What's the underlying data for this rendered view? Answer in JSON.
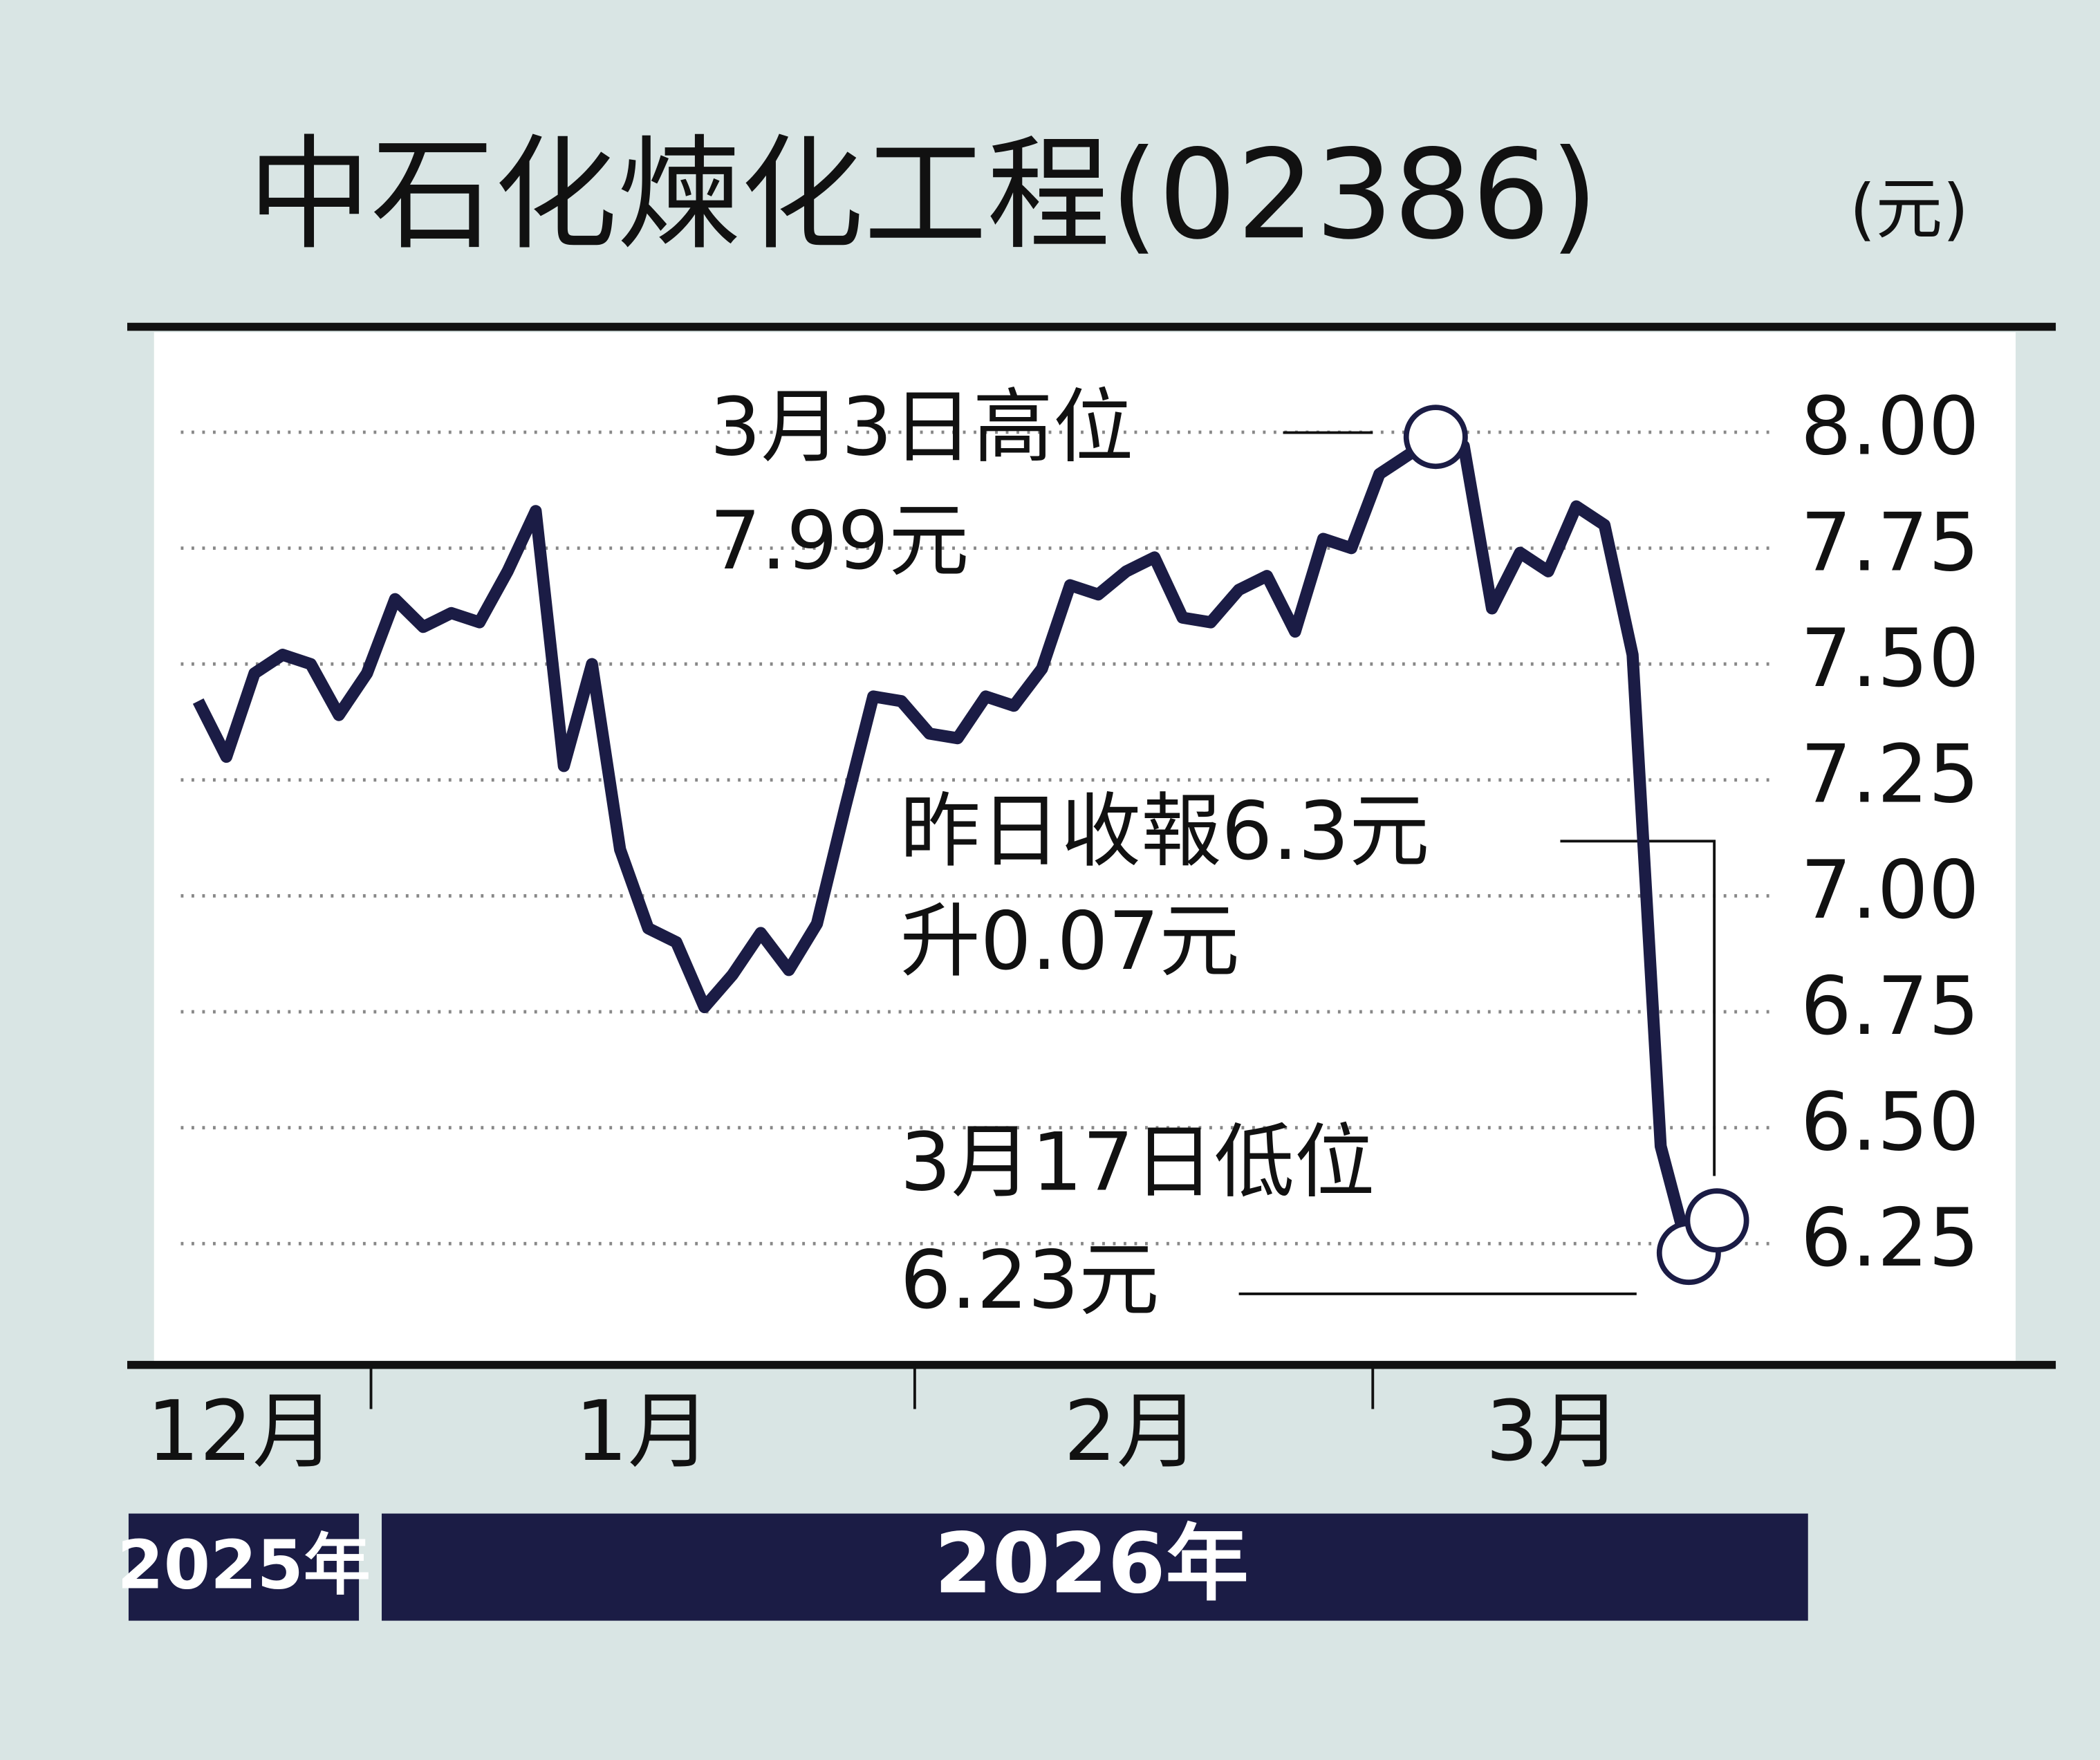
{
  "chart_data": {
    "type": "line",
    "title": "中石化煉化工程(02386)",
    "unit": "(元)",
    "values": [
      7.42,
      7.3,
      7.48,
      7.52,
      7.5,
      7.39,
      7.48,
      7.64,
      7.58,
      7.61,
      7.59,
      7.7,
      7.83,
      7.28,
      7.5,
      7.1,
      6.93,
      6.9,
      6.76,
      6.83,
      6.92,
      6.84,
      6.94,
      7.19,
      7.43,
      7.42,
      7.35,
      7.34,
      7.43,
      7.41,
      7.49,
      7.67,
      7.65,
      7.7,
      7.73,
      7.6,
      7.59,
      7.66,
      7.69,
      7.57,
      7.77,
      7.75,
      7.91,
      7.95,
      7.99,
      7.97,
      7.62,
      7.74,
      7.7,
      7.84,
      7.8,
      7.52,
      6.46,
      6.23,
      6.3
    ],
    "color": "#1b1c45",
    "ylim": [
      6.0,
      8.21
    ],
    "yticks": [
      {
        "value": 6.25,
        "label": "6.25"
      },
      {
        "value": 6.5,
        "label": "6.50"
      },
      {
        "value": 6.75,
        "label": "6.75"
      },
      {
        "value": 7,
        "label": "7.00"
      },
      {
        "value": 7.25,
        "label": "7.25"
      },
      {
        "value": 7.5,
        "label": "7.50"
      },
      {
        "value": 7.75,
        "label": "7.75"
      },
      {
        "value": 8,
        "label": "8.00"
      }
    ],
    "grid": true,
    "month_labels": [
      "12月",
      "1月",
      "2月",
      "3月"
    ],
    "year_labels": [
      "2025年",
      "2026年"
    ],
    "annotations": [
      [
        "3月3日高位",
        "7.99元"
      ],
      [
        "昨日收報6.3元",
        "升0.07元"
      ],
      [
        "3月17日低位",
        "6.23元"
      ]
    ]
  }
}
